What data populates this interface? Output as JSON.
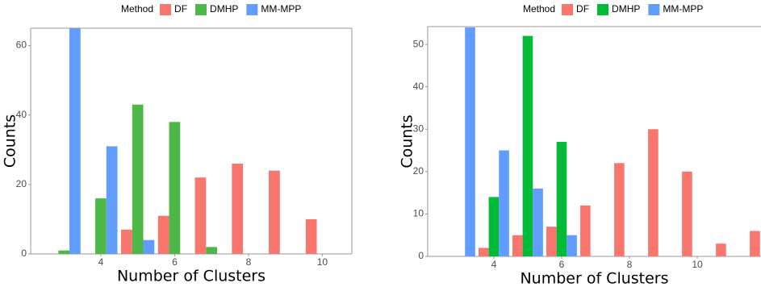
{
  "chart_data": [
    {
      "type": "bar",
      "legend_title": "Method",
      "x_label": "Number of Clusters",
      "y_label": "Counts",
      "x": [
        3,
        4,
        5,
        6,
        7,
        8,
        9,
        10
      ],
      "series": [
        {
          "name": "DF",
          "color": "#F8766D",
          "values": [
            null,
            null,
            7,
            11,
            22,
            26,
            24,
            10
          ]
        },
        {
          "name": "DMHP",
          "color": "#4DB848",
          "values": [
            1,
            16,
            43,
            38,
            2,
            null,
            null,
            null
          ]
        },
        {
          "name": "MM-MPP",
          "color": "#619CFF",
          "values": [
            65,
            31,
            4,
            null,
            null,
            null,
            null,
            null
          ]
        }
      ],
      "xlim": [
        2.1,
        10.8
      ],
      "ylim": [
        0,
        65
      ],
      "xticks": [
        4,
        6,
        8,
        10
      ],
      "yticks": [
        0,
        20,
        40,
        60
      ]
    },
    {
      "type": "bar",
      "legend_title": "Method",
      "x_label": "Number of Clusters",
      "y_label": "Counts",
      "x": [
        3,
        4,
        5,
        6,
        7,
        8,
        9,
        10,
        11,
        12
      ],
      "series": [
        {
          "name": "DF",
          "color": "#F8766D",
          "values": [
            null,
            2,
            5,
            7,
            12,
            22,
            30,
            20,
            3,
            6
          ]
        },
        {
          "name": "DMHP",
          "color": "#00BA38",
          "values": [
            null,
            14,
            52,
            27,
            null,
            null,
            null,
            null,
            null,
            null
          ]
        },
        {
          "name": "MM-MPP",
          "color": "#619CFF",
          "values": [
            54,
            25,
            16,
            5,
            null,
            null,
            null,
            null,
            null,
            null
          ]
        }
      ],
      "xlim": [
        2.05,
        11.88
      ],
      "ylim": [
        0,
        54.2
      ],
      "xticks": [
        4,
        6,
        8,
        10
      ],
      "yticks": [
        0,
        10,
        20,
        30,
        40,
        50
      ]
    }
  ]
}
